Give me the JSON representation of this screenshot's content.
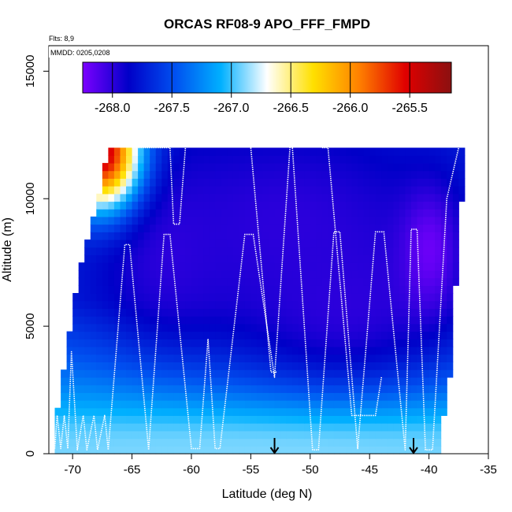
{
  "chart_data": {
    "type": "heatmap",
    "title": "ORCAS RF08-9 APO_FFF_FMPD",
    "xlabel": "Latitude (deg N)",
    "ylabel": "Altitude (m)",
    "xlim": [
      -72,
      -35
    ],
    "ylim": [
      0,
      16000
    ],
    "x_ticks": [
      -70,
      -65,
      -60,
      -55,
      -50,
      -45,
      -40,
      -35
    ],
    "y_ticks": [
      0,
      5000,
      10000,
      15000
    ],
    "annotations": [
      "Flts: 8,9",
      "MMDD: 0205,0208"
    ],
    "colorbar": {
      "range": [
        -268.25,
        -265.15
      ],
      "ticks": [
        -268.0,
        -267.5,
        -267.0,
        -266.5,
        -266.0,
        -265.5
      ],
      "tick_labels": [
        "-268.0",
        "-267.5",
        "-267.0",
        "-266.5",
        "-266.0",
        "-265.5"
      ],
      "colors": [
        "#7b00ff",
        "#0000c8",
        "#0050f0",
        "#00b0ff",
        "#ffffff",
        "#ffe000",
        "#ff8000",
        "#e00000",
        "#8b1010"
      ]
    },
    "curtain_edges": {
      "top_m": 12000,
      "left_lat_by_alt": [
        [
          0,
          -71.5
        ],
        [
          1500,
          -71.3
        ],
        [
          4000,
          -70.5
        ],
        [
          7000,
          -69.5
        ],
        [
          9000,
          -68.5
        ],
        [
          10000,
          -67.8
        ],
        [
          11000,
          -67.4
        ],
        [
          12000,
          -67.0
        ]
      ],
      "right_lat_by_alt": [
        [
          0,
          -39.5
        ],
        [
          2500,
          -38.6
        ],
        [
          5000,
          -38.2
        ],
        [
          8000,
          -37.8
        ],
        [
          10000,
          -37.5
        ],
        [
          12000,
          -37.0
        ]
      ]
    },
    "field_features": [
      {
        "name": "upper-troposphere low",
        "lat": -52,
        "alt": 9000,
        "sx": 9,
        "sy": 3000,
        "value": -268.0
      },
      {
        "name": "mid-troposphere low",
        "lat": -47,
        "alt": 6000,
        "sx": 7,
        "sy": 2500,
        "value": -268.0
      },
      {
        "name": "western mid low",
        "lat": -62,
        "alt": 8000,
        "sx": 4,
        "sy": 2500,
        "value": -268.0
      },
      {
        "name": "northern purple minimum",
        "lat": -40,
        "alt": 8000,
        "sx": 1.7,
        "sy": 1700,
        "value": -268.2
      },
      {
        "name": "southern upper maximum",
        "lat": -67.5,
        "alt": 11800,
        "sx": 2.2,
        "sy": 1500,
        "value": -265.4
      },
      {
        "name": "boundary layer",
        "lat": -55,
        "alt": 0,
        "sx": 30,
        "sy": 1200,
        "value": -266.9
      }
    ],
    "flight_tracks": [
      {
        "flight": "RF08",
        "points": [
          [
            -71.5,
            200
          ],
          [
            -71.3,
            1500
          ],
          [
            -71.0,
            200
          ],
          [
            -70.7,
            1500
          ],
          [
            -70.4,
            200
          ],
          [
            -70.1,
            4000
          ],
          [
            -69.6,
            150
          ],
          [
            -69.1,
            1500
          ],
          [
            -68.8,
            150
          ],
          [
            -68.2,
            1500
          ],
          [
            -67.9,
            150
          ],
          [
            -67.3,
            1500
          ],
          [
            -67.0,
            150
          ],
          [
            -65.6,
            8200
          ],
          [
            -65.2,
            8200
          ],
          [
            -63.6,
            150
          ],
          [
            -62.3,
            8600
          ],
          [
            -61.8,
            8600
          ],
          [
            -60.0,
            200
          ],
          [
            -59.3,
            200
          ],
          [
            -58.6,
            4500
          ],
          [
            -58.0,
            200
          ],
          [
            -57.6,
            200
          ],
          [
            -55.5,
            8600
          ],
          [
            -54.8,
            8600
          ],
          [
            -53.0,
            3000
          ],
          [
            -51.7,
            12000
          ]
        ]
      },
      {
        "flight": "RF09",
        "points": [
          [
            -51.5,
            12000
          ],
          [
            -49.8,
            150
          ],
          [
            -49.3,
            150
          ],
          [
            -48.0,
            8700
          ],
          [
            -47.5,
            8700
          ],
          [
            -46.0,
            200
          ],
          [
            -44.5,
            8700
          ],
          [
            -43.8,
            8700
          ],
          [
            -42.0,
            150
          ],
          [
            -41.5,
            8800
          ],
          [
            -41.0,
            8800
          ],
          [
            -40.3,
            150
          ],
          [
            -39.7,
            150
          ],
          [
            -38.5,
            10000
          ],
          [
            -37.5,
            12000
          ]
        ]
      },
      {
        "flight": "RF08-upper",
        "points": [
          [
            -65.0,
            12000
          ],
          [
            -61.8,
            12000
          ],
          [
            -61.5,
            9000
          ],
          [
            -61.0,
            9000
          ],
          [
            -60.5,
            12000
          ]
        ]
      },
      {
        "flight": "RF08-descent",
        "points": [
          [
            -55.0,
            12000
          ],
          [
            -53.3,
            3200
          ],
          [
            -52.8,
            3200
          ]
        ]
      },
      {
        "flight": "RF09-north",
        "points": [
          [
            -49.0,
            12000
          ],
          [
            -48.5,
            12000
          ],
          [
            -46.5,
            1500
          ],
          [
            -44.5,
            1500
          ],
          [
            -44.0,
            3000
          ]
        ]
      }
    ],
    "markers": [
      {
        "type": "arrow-down",
        "lat": -53.0,
        "alt": 0
      },
      {
        "type": "arrow-down",
        "lat": -41.3,
        "alt": 0
      }
    ]
  }
}
